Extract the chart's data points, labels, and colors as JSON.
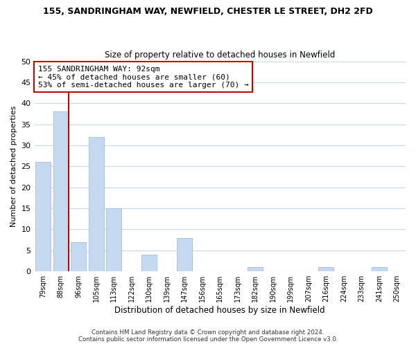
{
  "title": "155, SANDRINGHAM WAY, NEWFIELD, CHESTER LE STREET, DH2 2FD",
  "subtitle": "Size of property relative to detached houses in Newfield",
  "xlabel": "Distribution of detached houses by size in Newfield",
  "ylabel": "Number of detached properties",
  "bar_labels": [
    "79sqm",
    "88sqm",
    "96sqm",
    "105sqm",
    "113sqm",
    "122sqm",
    "130sqm",
    "139sqm",
    "147sqm",
    "156sqm",
    "165sqm",
    "173sqm",
    "182sqm",
    "190sqm",
    "199sqm",
    "207sqm",
    "216sqm",
    "224sqm",
    "233sqm",
    "241sqm",
    "250sqm"
  ],
  "bar_values": [
    26,
    38,
    7,
    32,
    15,
    0,
    4,
    0,
    8,
    0,
    0,
    0,
    1,
    0,
    0,
    0,
    1,
    0,
    0,
    1,
    0
  ],
  "bar_color": "#c5d9f0",
  "bar_edge_color": "#a0bdd8",
  "ylim": [
    0,
    50
  ],
  "yticks": [
    0,
    5,
    10,
    15,
    20,
    25,
    30,
    35,
    40,
    45,
    50
  ],
  "vline_color": "#cc0000",
  "annotation_title": "155 SANDRINGHAM WAY: 92sqm",
  "annotation_line1": "← 45% of detached houses are smaller (60)",
  "annotation_line2": "53% of semi-detached houses are larger (70) →",
  "annotation_box_color": "#ffffff",
  "annotation_box_edge": "#cc0000",
  "footer_line1": "Contains HM Land Registry data © Crown copyright and database right 2024.",
  "footer_line2": "Contains public sector information licensed under the Open Government Licence v3.0.",
  "background_color": "#ffffff",
  "grid_color": "#c8d8e8"
}
